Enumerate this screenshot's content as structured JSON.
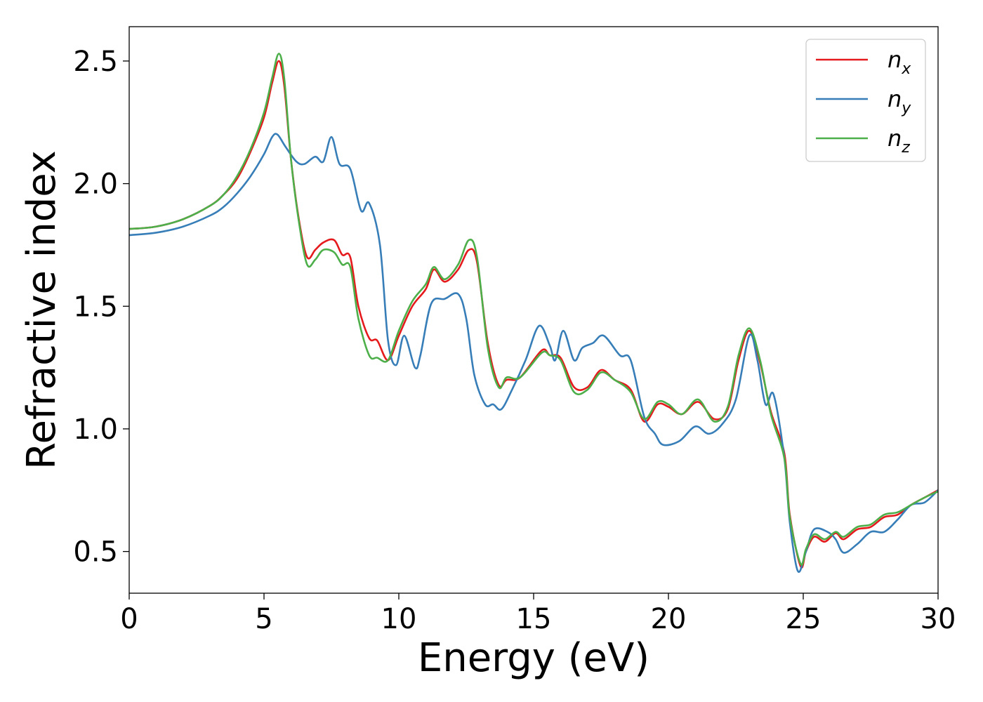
{
  "chart_data": {
    "type": "line",
    "title": "",
    "xlabel": "Energy (eV)",
    "ylabel": "Refractive index",
    "xlim": [
      0,
      30
    ],
    "ylim": [
      0.33,
      2.64
    ],
    "xticks": [
      0,
      5,
      10,
      15,
      20,
      25,
      30
    ],
    "yticks": [
      0.5,
      1.0,
      1.5,
      2.0,
      2.5
    ],
    "xtick_labels": [
      "0",
      "5",
      "10",
      "15",
      "20",
      "25",
      "30"
    ],
    "ytick_labels": [
      "0.5",
      "1.0",
      "1.5",
      "2.0",
      "2.5"
    ],
    "grid": false,
    "legend_position": "top-right",
    "series": [
      {
        "name": "n",
        "subscript": "x",
        "color": "#e41a1c",
        "points": [
          [
            0,
            1.815
          ],
          [
            1,
            1.825
          ],
          [
            2,
            1.855
          ],
          [
            3,
            1.91
          ],
          [
            3.5,
            1.955
          ],
          [
            4,
            2.02
          ],
          [
            4.5,
            2.13
          ],
          [
            5,
            2.27
          ],
          [
            5.3,
            2.41
          ],
          [
            5.55,
            2.5
          ],
          [
            5.75,
            2.4
          ],
          [
            6,
            2.1
          ],
          [
            6.3,
            1.85
          ],
          [
            6.6,
            1.7
          ],
          [
            6.9,
            1.73
          ],
          [
            7.2,
            1.76
          ],
          [
            7.6,
            1.77
          ],
          [
            7.9,
            1.71
          ],
          [
            8.2,
            1.7
          ],
          [
            8.5,
            1.5
          ],
          [
            8.9,
            1.37
          ],
          [
            9.2,
            1.36
          ],
          [
            9.6,
            1.28
          ],
          [
            10,
            1.38
          ],
          [
            10.5,
            1.5
          ],
          [
            11,
            1.57
          ],
          [
            11.3,
            1.65
          ],
          [
            11.7,
            1.6
          ],
          [
            12.2,
            1.65
          ],
          [
            12.6,
            1.73
          ],
          [
            12.9,
            1.68
          ],
          [
            13.3,
            1.35
          ],
          [
            13.7,
            1.18
          ],
          [
            14,
            1.2
          ],
          [
            14.5,
            1.21
          ],
          [
            15.3,
            1.32
          ],
          [
            15.6,
            1.3
          ],
          [
            16,
            1.29
          ],
          [
            16.5,
            1.17
          ],
          [
            17,
            1.17
          ],
          [
            17.5,
            1.24
          ],
          [
            18,
            1.2
          ],
          [
            18.6,
            1.16
          ],
          [
            19.1,
            1.03
          ],
          [
            19.6,
            1.1
          ],
          [
            20,
            1.09
          ],
          [
            20.5,
            1.06
          ],
          [
            21.1,
            1.11
          ],
          [
            21.7,
            1.04
          ],
          [
            22.2,
            1.08
          ],
          [
            22.6,
            1.28
          ],
          [
            23,
            1.4
          ],
          [
            23.4,
            1.27
          ],
          [
            23.8,
            1.07
          ],
          [
            24.3,
            0.9
          ],
          [
            24.5,
            0.65
          ],
          [
            24.9,
            0.44
          ],
          [
            25.1,
            0.5
          ],
          [
            25.4,
            0.56
          ],
          [
            25.8,
            0.54
          ],
          [
            26.2,
            0.575
          ],
          [
            26.5,
            0.55
          ],
          [
            27,
            0.59
          ],
          [
            27.5,
            0.6
          ],
          [
            28,
            0.64
          ],
          [
            28.5,
            0.65
          ],
          [
            29,
            0.69
          ],
          [
            29.5,
            0.72
          ],
          [
            30,
            0.75
          ]
        ]
      },
      {
        "name": "n",
        "subscript": "y",
        "color": "#377eb8",
        "points": [
          [
            0,
            1.79
          ],
          [
            1,
            1.8
          ],
          [
            2,
            1.825
          ],
          [
            3,
            1.87
          ],
          [
            3.5,
            1.905
          ],
          [
            4,
            1.96
          ],
          [
            4.5,
            2.03
          ],
          [
            5,
            2.12
          ],
          [
            5.3,
            2.19
          ],
          [
            5.5,
            2.2
          ],
          [
            5.8,
            2.15
          ],
          [
            6.2,
            2.09
          ],
          [
            6.5,
            2.08
          ],
          [
            6.9,
            2.11
          ],
          [
            7.2,
            2.09
          ],
          [
            7.5,
            2.19
          ],
          [
            7.8,
            2.08
          ],
          [
            8.2,
            2.06
          ],
          [
            8.6,
            1.89
          ],
          [
            8.9,
            1.92
          ],
          [
            9.3,
            1.75
          ],
          [
            9.6,
            1.36
          ],
          [
            9.9,
            1.26
          ],
          [
            10.2,
            1.38
          ],
          [
            10.6,
            1.25
          ],
          [
            10.8,
            1.3
          ],
          [
            11.2,
            1.51
          ],
          [
            11.7,
            1.53
          ],
          [
            12.2,
            1.55
          ],
          [
            12.5,
            1.45
          ],
          [
            12.8,
            1.22
          ],
          [
            13.2,
            1.1
          ],
          [
            13.5,
            1.1
          ],
          [
            13.8,
            1.08
          ],
          [
            14.2,
            1.16
          ],
          [
            14.7,
            1.28
          ],
          [
            15.2,
            1.42
          ],
          [
            15.6,
            1.34
          ],
          [
            15.8,
            1.28
          ],
          [
            16.1,
            1.4
          ],
          [
            16.5,
            1.28
          ],
          [
            16.8,
            1.33
          ],
          [
            17.2,
            1.35
          ],
          [
            17.6,
            1.38
          ],
          [
            18.2,
            1.3
          ],
          [
            18.6,
            1.28
          ],
          [
            19.1,
            1.05
          ],
          [
            19.5,
            0.98
          ],
          [
            19.8,
            0.935
          ],
          [
            20.4,
            0.95
          ],
          [
            21,
            1.01
          ],
          [
            21.5,
            0.98
          ],
          [
            22,
            1.02
          ],
          [
            22.5,
            1.12
          ],
          [
            23,
            1.38
          ],
          [
            23.3,
            1.28
          ],
          [
            23.6,
            1.1
          ],
          [
            23.9,
            1.14
          ],
          [
            24.3,
            0.88
          ],
          [
            24.5,
            0.62
          ],
          [
            24.8,
            0.42
          ],
          [
            25.1,
            0.5
          ],
          [
            25.4,
            0.59
          ],
          [
            25.9,
            0.58
          ],
          [
            26.2,
            0.55
          ],
          [
            26.5,
            0.495
          ],
          [
            27,
            0.53
          ],
          [
            27.5,
            0.58
          ],
          [
            28,
            0.58
          ],
          [
            28.5,
            0.63
          ],
          [
            29,
            0.69
          ],
          [
            29.5,
            0.7
          ],
          [
            30,
            0.75
          ]
        ]
      },
      {
        "name": "n",
        "subscript": "z",
        "color": "#4daf4a",
        "points": [
          [
            0,
            1.815
          ],
          [
            1,
            1.825
          ],
          [
            2,
            1.855
          ],
          [
            3,
            1.91
          ],
          [
            3.5,
            1.955
          ],
          [
            4,
            2.03
          ],
          [
            4.5,
            2.14
          ],
          [
            5,
            2.29
          ],
          [
            5.3,
            2.43
          ],
          [
            5.55,
            2.53
          ],
          [
            5.75,
            2.43
          ],
          [
            6,
            2.1
          ],
          [
            6.3,
            1.84
          ],
          [
            6.6,
            1.67
          ],
          [
            6.9,
            1.69
          ],
          [
            7.2,
            1.73
          ],
          [
            7.6,
            1.72
          ],
          [
            7.9,
            1.67
          ],
          [
            8.2,
            1.66
          ],
          [
            8.5,
            1.45
          ],
          [
            8.9,
            1.3
          ],
          [
            9.2,
            1.29
          ],
          [
            9.6,
            1.28
          ],
          [
            10,
            1.4
          ],
          [
            10.5,
            1.52
          ],
          [
            11,
            1.59
          ],
          [
            11.3,
            1.66
          ],
          [
            11.7,
            1.61
          ],
          [
            12.2,
            1.67
          ],
          [
            12.6,
            1.77
          ],
          [
            12.9,
            1.7
          ],
          [
            13.3,
            1.33
          ],
          [
            13.7,
            1.17
          ],
          [
            14,
            1.21
          ],
          [
            14.5,
            1.21
          ],
          [
            15.3,
            1.31
          ],
          [
            15.6,
            1.3
          ],
          [
            16,
            1.28
          ],
          [
            16.5,
            1.15
          ],
          [
            17,
            1.16
          ],
          [
            17.5,
            1.23
          ],
          [
            18,
            1.2
          ],
          [
            18.6,
            1.15
          ],
          [
            19.1,
            1.04
          ],
          [
            19.6,
            1.11
          ],
          [
            20,
            1.1
          ],
          [
            20.5,
            1.06
          ],
          [
            21.1,
            1.12
          ],
          [
            21.7,
            1.03
          ],
          [
            22.2,
            1.09
          ],
          [
            22.6,
            1.3
          ],
          [
            23,
            1.41
          ],
          [
            23.4,
            1.28
          ],
          [
            23.8,
            1.06
          ],
          [
            24.3,
            0.88
          ],
          [
            24.5,
            0.64
          ],
          [
            24.9,
            0.45
          ],
          [
            25.1,
            0.51
          ],
          [
            25.4,
            0.57
          ],
          [
            25.8,
            0.55
          ],
          [
            26.2,
            0.58
          ],
          [
            26.5,
            0.56
          ],
          [
            27,
            0.6
          ],
          [
            27.5,
            0.61
          ],
          [
            28,
            0.65
          ],
          [
            28.5,
            0.66
          ],
          [
            29,
            0.69
          ],
          [
            29.5,
            0.72
          ],
          [
            30,
            0.745
          ]
        ]
      }
    ]
  }
}
